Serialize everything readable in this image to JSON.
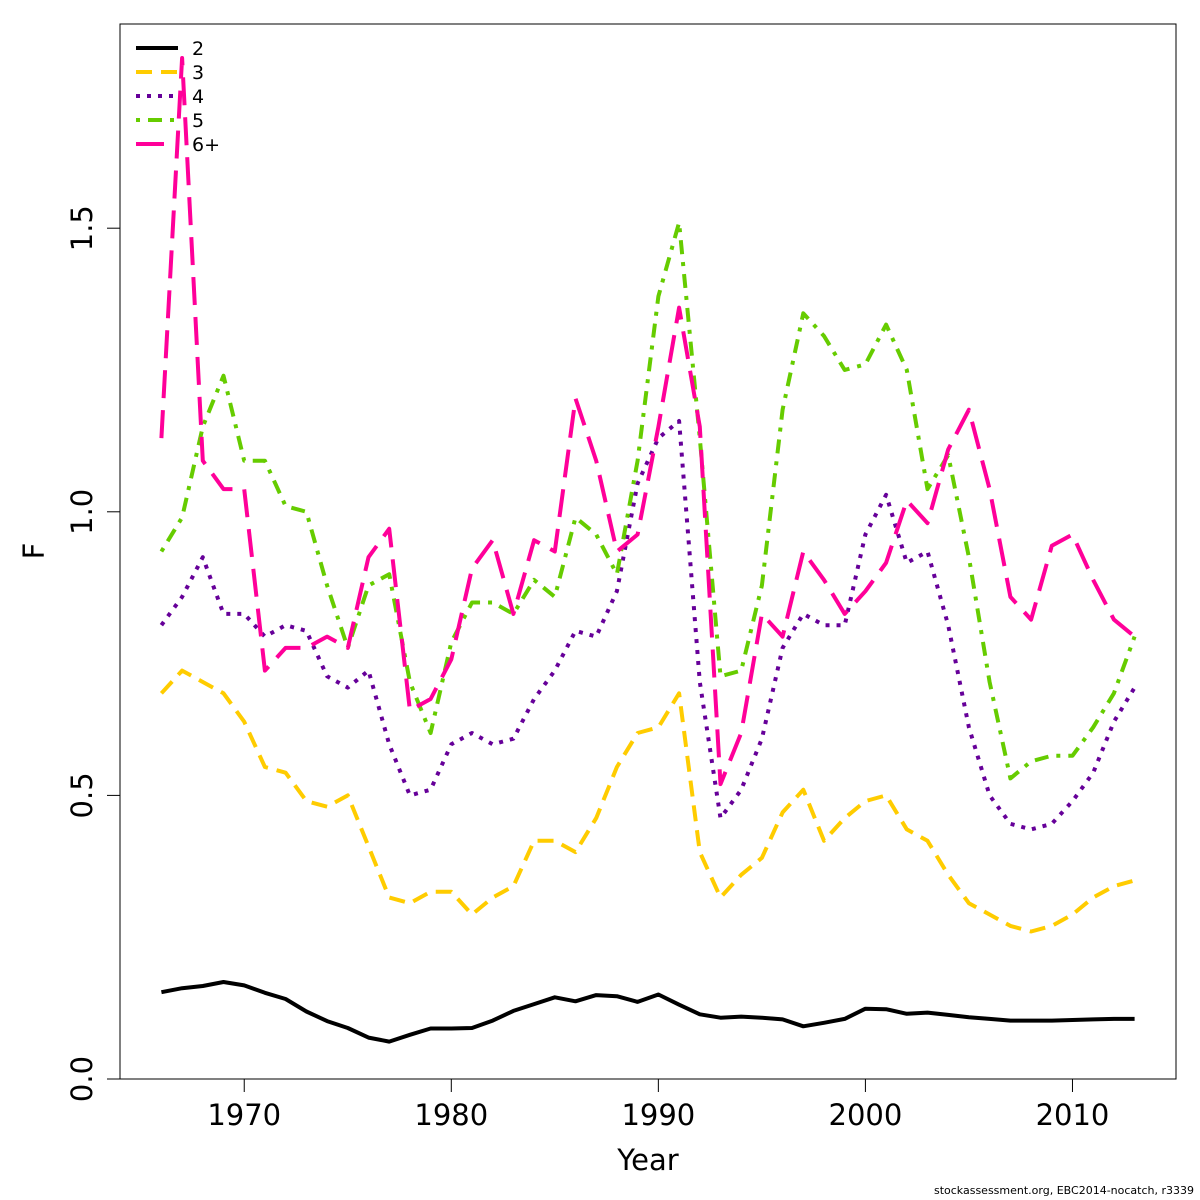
{
  "chart_data": {
    "type": "line",
    "xlabel": "Year",
    "ylabel": "F",
    "xlim": [
      1964,
      2015
    ],
    "ylim": [
      0,
      1.86
    ],
    "xticks": [
      1970,
      1980,
      1990,
      2000,
      2010
    ],
    "yticks": [
      0.0,
      0.5,
      1.0,
      1.5
    ],
    "ytick_labels": [
      "0.0",
      "0.5",
      "1.0",
      "1.5"
    ],
    "legend_position": "top-left",
    "x": [
      1966,
      1967,
      1968,
      1969,
      1970,
      1971,
      1972,
      1973,
      1974,
      1975,
      1976,
      1977,
      1978,
      1979,
      1980,
      1981,
      1982,
      1983,
      1984,
      1985,
      1986,
      1987,
      1988,
      1989,
      1990,
      1991,
      1992,
      1993,
      1994,
      1995,
      1996,
      1997,
      1998,
      1999,
      2000,
      2001,
      2002,
      2003,
      2004,
      2005,
      2006,
      2007,
      2008,
      2009,
      2010,
      2011,
      2012,
      2013
    ],
    "series": [
      {
        "name": "2",
        "color": "#000000",
        "dash": "solid",
        "values": [
          0.153,
          0.16,
          0.164,
          0.171,
          0.165,
          0.152,
          0.141,
          0.119,
          0.102,
          0.09,
          0.073,
          0.066,
          0.078,
          0.089,
          0.089,
          0.09,
          0.103,
          0.12,
          0.132,
          0.144,
          0.137,
          0.148,
          0.146,
          0.136,
          0.149,
          0.131,
          0.114,
          0.108,
          0.11,
          0.108,
          0.105,
          0.093,
          0.099,
          0.106,
          0.124,
          0.123,
          0.115,
          0.117,
          0.113,
          0.109,
          0.106,
          0.103,
          0.103,
          0.103,
          0.104,
          0.105,
          0.106,
          0.106
        ]
      },
      {
        "name": "3",
        "color": "#ffcc00",
        "dash": "dashed",
        "values": [
          0.68,
          0.72,
          0.7,
          0.68,
          0.63,
          0.55,
          0.54,
          0.49,
          0.48,
          0.5,
          0.41,
          0.32,
          0.31,
          0.33,
          0.33,
          0.29,
          0.32,
          0.34,
          0.42,
          0.42,
          0.4,
          0.46,
          0.55,
          0.61,
          0.62,
          0.68,
          0.4,
          0.32,
          0.36,
          0.39,
          0.47,
          0.51,
          0.42,
          0.46,
          0.49,
          0.5,
          0.44,
          0.42,
          0.36,
          0.31,
          0.29,
          0.27,
          0.26,
          0.27,
          0.29,
          0.32,
          0.34,
          0.35
        ]
      },
      {
        "name": "4",
        "color": "#660099",
        "dash": "dotted",
        "values": [
          0.8,
          0.85,
          0.92,
          0.82,
          0.82,
          0.78,
          0.8,
          0.79,
          0.71,
          0.69,
          0.72,
          0.59,
          0.5,
          0.51,
          0.59,
          0.61,
          0.59,
          0.6,
          0.67,
          0.72,
          0.79,
          0.78,
          0.86,
          1.05,
          1.13,
          1.16,
          0.7,
          0.46,
          0.51,
          0.6,
          0.76,
          0.82,
          0.8,
          0.8,
          0.96,
          1.03,
          0.91,
          0.93,
          0.8,
          0.62,
          0.5,
          0.45,
          0.44,
          0.45,
          0.49,
          0.54,
          0.63,
          0.69
        ]
      },
      {
        "name": "5",
        "color": "#66cc00",
        "dash": "dashdot",
        "values": [
          0.93,
          0.99,
          1.15,
          1.24,
          1.09,
          1.09,
          1.01,
          1.0,
          0.87,
          0.76,
          0.87,
          0.89,
          0.7,
          0.61,
          0.77,
          0.84,
          0.84,
          0.82,
          0.88,
          0.85,
          0.99,
          0.96,
          0.89,
          1.09,
          1.38,
          1.51,
          1.13,
          0.71,
          0.72,
          0.87,
          1.18,
          1.35,
          1.31,
          1.25,
          1.26,
          1.33,
          1.25,
          1.04,
          1.1,
          0.92,
          0.7,
          0.53,
          0.56,
          0.57,
          0.57,
          0.62,
          0.68,
          0.78
        ]
      },
      {
        "name": "6+",
        "color": "#ff0099",
        "dash": "longdash",
        "values": [
          1.13,
          1.8,
          1.09,
          1.04,
          1.04,
          0.72,
          0.76,
          0.76,
          0.78,
          0.76,
          0.92,
          0.97,
          0.65,
          0.67,
          0.74,
          0.9,
          0.95,
          0.82,
          0.95,
          0.93,
          1.2,
          1.09,
          0.93,
          0.96,
          1.15,
          1.36,
          1.15,
          0.52,
          0.61,
          0.82,
          0.78,
          0.93,
          0.88,
          0.82,
          0.86,
          0.91,
          1.02,
          0.98,
          1.11,
          1.18,
          1.04,
          0.85,
          0.81,
          0.94,
          0.96,
          0.88,
          0.81,
          0.78
        ]
      }
    ]
  },
  "credit": "stockassessment.org, EBC2014-nocatch, r3339"
}
